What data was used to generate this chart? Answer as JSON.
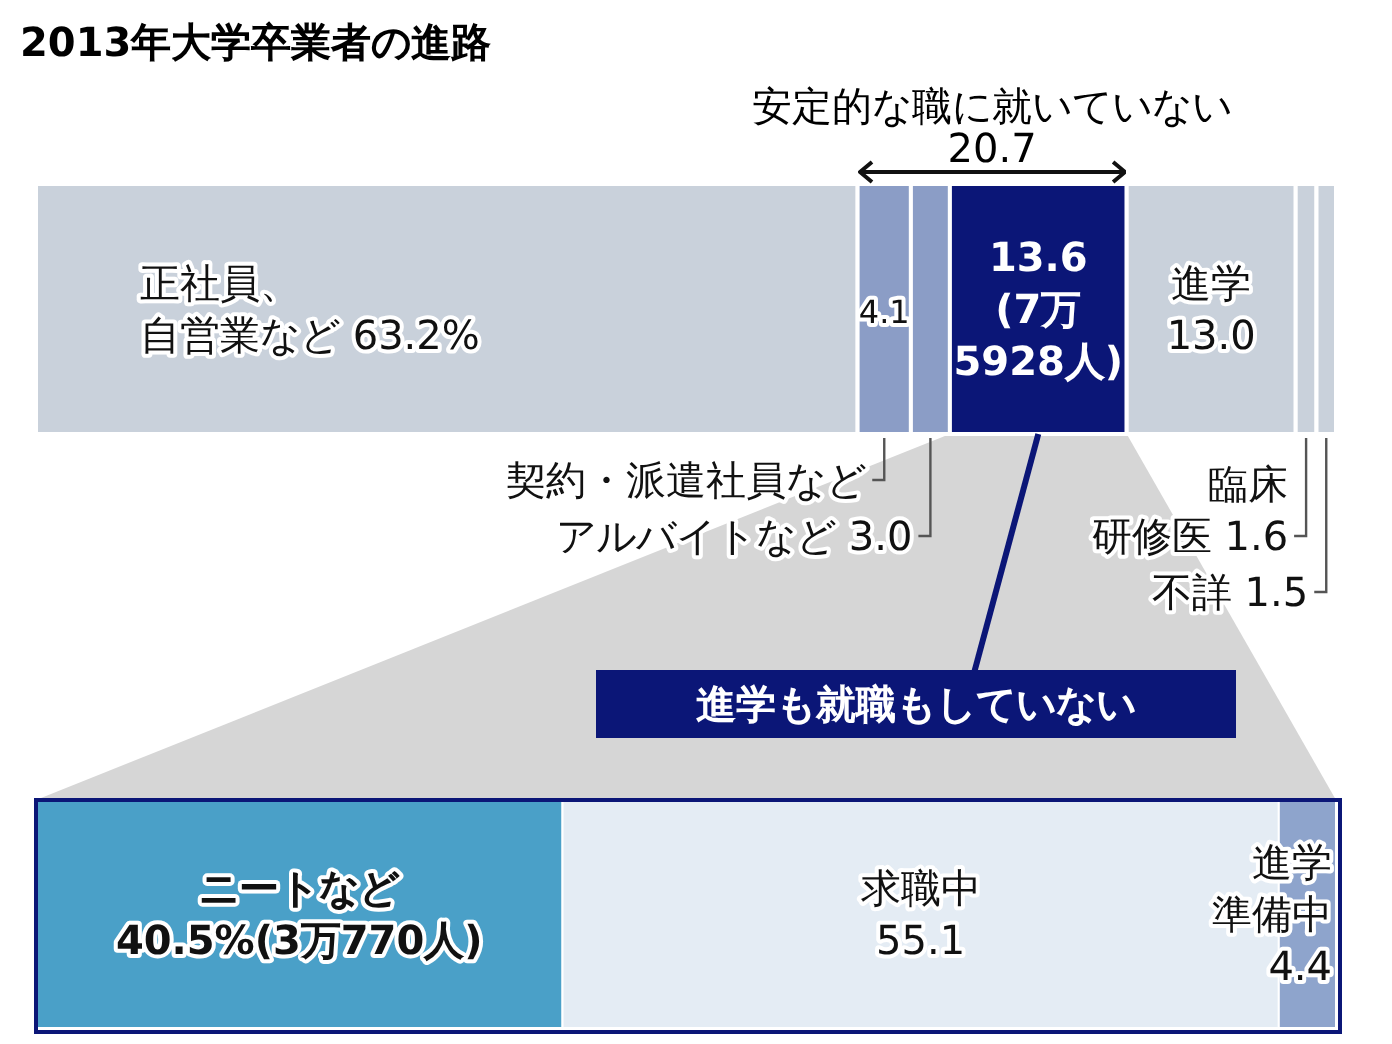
{
  "chart_data": [
    {
      "type": "bar",
      "title": "2013年大学卒業者の進路",
      "orientation": "horizontal",
      "stacked": true,
      "categories": [
        null
      ],
      "xlim": [
        0,
        100
      ],
      "tick_labels": false,
      "annotations": [
        "安定的な職に就いていない",
        "20.7"
      ],
      "series": [
        {
          "name": "正社員、自営業など",
          "color": "#c9d1db",
          "values": [
            63.2
          ],
          "value_labels": [
            "63.2%"
          ]
        },
        {
          "name": "契約・派遣社員など",
          "color": "#8b9dc6",
          "values": [
            4.1
          ],
          "value_labels": [
            "4.1"
          ]
        },
        {
          "name": "アルバイトなど",
          "color": "#8b9dc6",
          "values": [
            3.0
          ],
          "value_labels": [
            "3.0"
          ]
        },
        {
          "color": "#0b1677",
          "values": [
            13.6
          ],
          "value_labels": [
            "13.6\n(7万\n5928人)"
          ]
        },
        {
          "name": "進学",
          "color": "#c9d1db",
          "values": [
            13.0
          ],
          "value_labels": [
            "13.0"
          ]
        },
        {
          "name": "臨床研修医",
          "color": "#c9d1db",
          "values": [
            1.6
          ],
          "value_labels": [
            "1.6"
          ]
        },
        {
          "name": "不詳",
          "color": "#c9d1db",
          "values": [
            1.5
          ],
          "value_labels": [
            "1.5"
          ]
        }
      ]
    },
    {
      "type": "bar",
      "title": "進学も就職もしていない",
      "orientation": "horizontal",
      "stacked": true,
      "categories": [
        null
      ],
      "xlim": [
        0,
        100
      ],
      "tick_labels": false,
      "series": [
        {
          "name": "ニートなど",
          "color": "#4aa0c8",
          "values": [
            40.5
          ],
          "value_labels": [
            "40.5%(3万770人)"
          ]
        },
        {
          "name": "求職中",
          "color": "#e4ecf4",
          "values": [
            55.1
          ],
          "value_labels": [
            "55.1"
          ]
        },
        {
          "name": "進学準備中",
          "color": "#8ea4cc",
          "values": [
            4.4
          ],
          "value_labels": [
            "4.4"
          ]
        }
      ]
    }
  ]
}
